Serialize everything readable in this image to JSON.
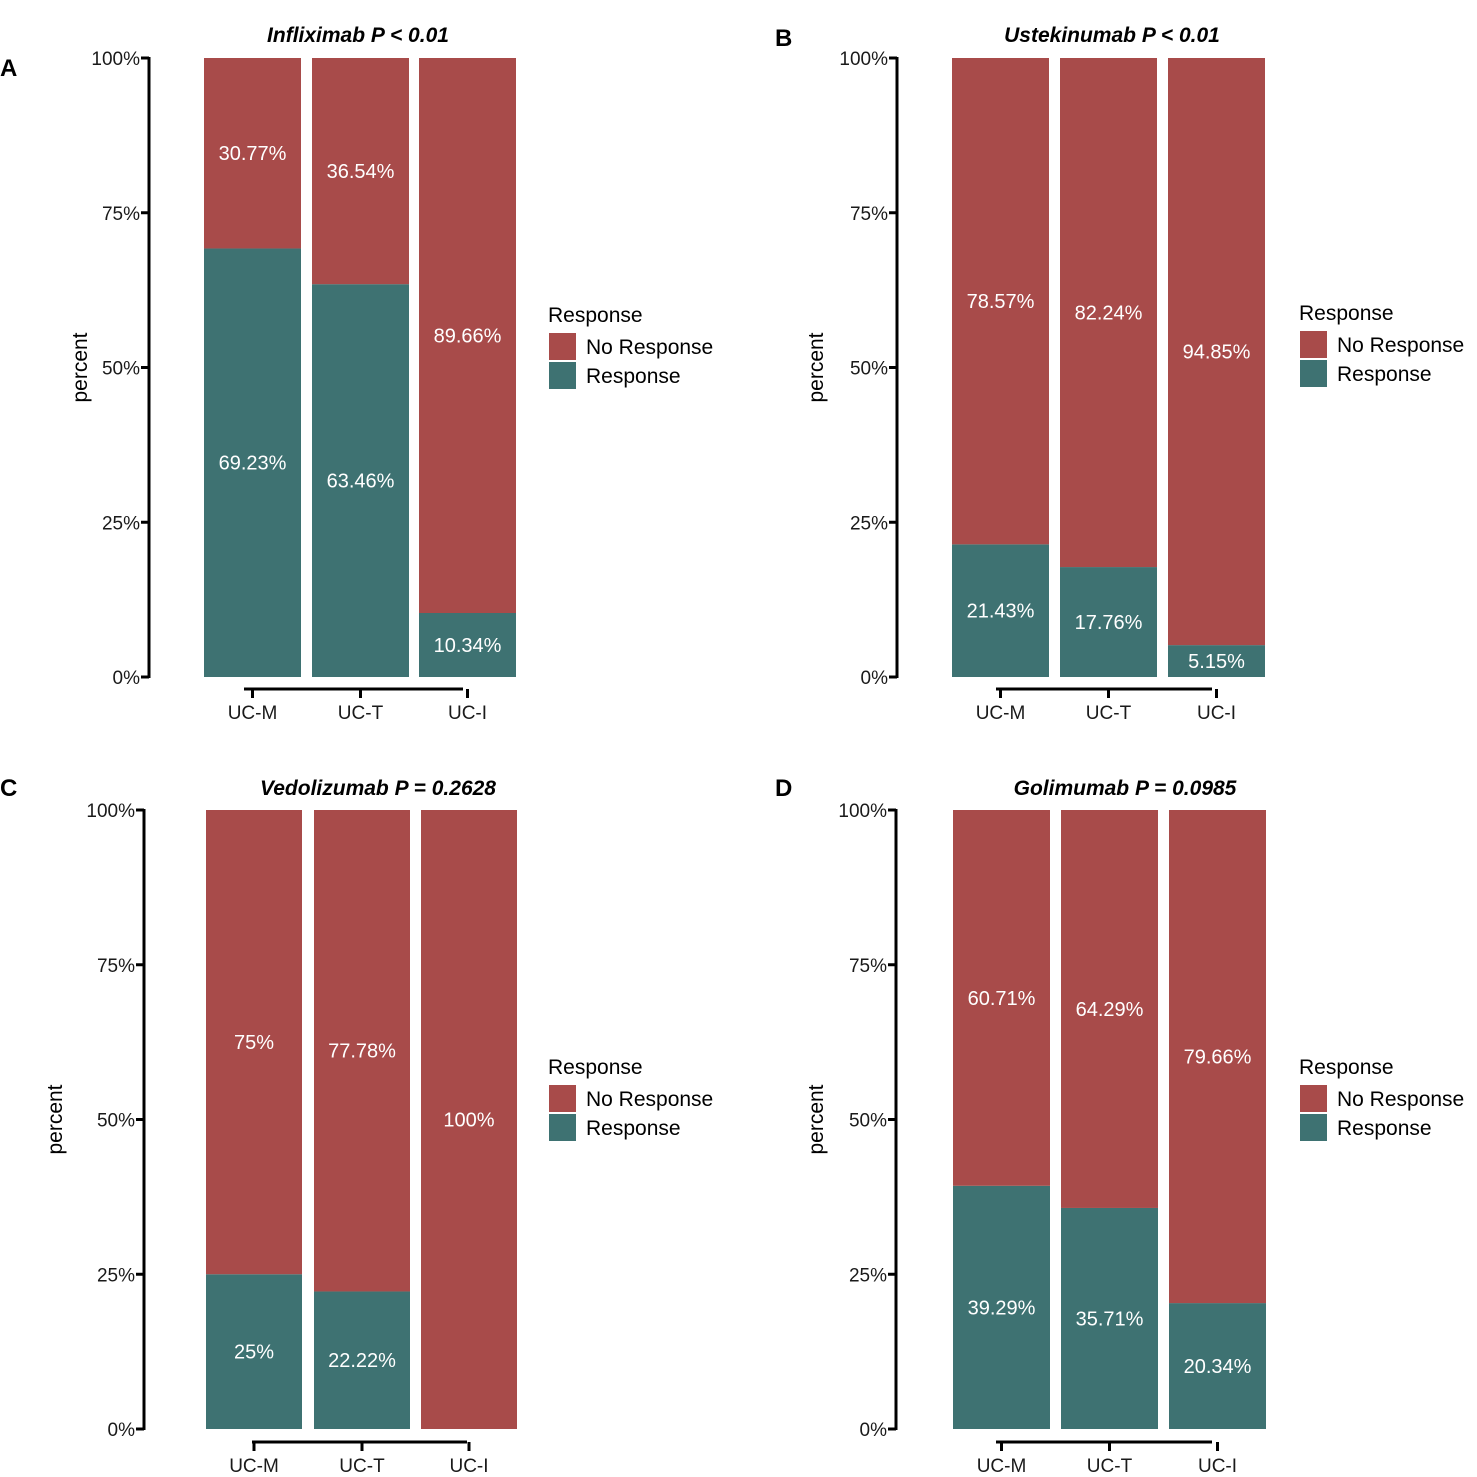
{
  "colors": {
    "no_response": "#a84b4a",
    "response": "#3e7272"
  },
  "legend": {
    "title": "Response",
    "items": [
      "No Response",
      "Response"
    ]
  },
  "chart_data": [
    {
      "panel": "A",
      "type": "bar",
      "stacked": true,
      "title": "Infliximab P < 0.01",
      "xlabel": "",
      "ylabel": "percent",
      "ylim": [
        0,
        100
      ],
      "yticks": [
        "0%",
        "25%",
        "50%",
        "75%",
        "100%"
      ],
      "categories": [
        "UC-M",
        "UC-T",
        "UC-I"
      ],
      "series": [
        {
          "name": "Response",
          "values": [
            69.23,
            63.46,
            10.34
          ],
          "labels": [
            "69.23%",
            "63.46%",
            "10.34%"
          ]
        },
        {
          "name": "No Response",
          "values": [
            30.77,
            36.54,
            89.66
          ],
          "labels": [
            "30.77%",
            "36.54%",
            "89.66%"
          ]
        }
      ]
    },
    {
      "panel": "B",
      "type": "bar",
      "stacked": true,
      "title": "Ustekinumab P < 0.01",
      "xlabel": "",
      "ylabel": "percent",
      "ylim": [
        0,
        100
      ],
      "yticks": [
        "0%",
        "25%",
        "50%",
        "75%",
        "100%"
      ],
      "categories": [
        "UC-M",
        "UC-T",
        "UC-I"
      ],
      "series": [
        {
          "name": "Response",
          "values": [
            21.43,
            17.76,
            5.15
          ],
          "labels": [
            "21.43%",
            "17.76%",
            "5.15%"
          ]
        },
        {
          "name": "No Response",
          "values": [
            78.57,
            82.24,
            94.85
          ],
          "labels": [
            "78.57%",
            "82.24%",
            "94.85%"
          ]
        }
      ]
    },
    {
      "panel": "C",
      "type": "bar",
      "stacked": true,
      "title": "Vedolizumab P = 0.2628",
      "xlabel": "",
      "ylabel": "percent",
      "ylim": [
        0,
        100
      ],
      "yticks": [
        "0%",
        "25%",
        "50%",
        "75%",
        "100%"
      ],
      "categories": [
        "UC-M",
        "UC-T",
        "UC-I"
      ],
      "series": [
        {
          "name": "Response",
          "values": [
            25,
            22.22,
            0
          ],
          "labels": [
            "25%",
            "22.22%",
            ""
          ]
        },
        {
          "name": "No Response",
          "values": [
            75,
            77.78,
            100
          ],
          "labels": [
            "75%",
            "77.78%",
            "100%"
          ]
        }
      ]
    },
    {
      "panel": "D",
      "type": "bar",
      "stacked": true,
      "title": "Golimumab P = 0.0985",
      "xlabel": "",
      "ylabel": "percent",
      "ylim": [
        0,
        100
      ],
      "yticks": [
        "0%",
        "25%",
        "50%",
        "75%",
        "100%"
      ],
      "categories": [
        "UC-M",
        "UC-T",
        "UC-I"
      ],
      "series": [
        {
          "name": "Response",
          "values": [
            39.29,
            35.71,
            20.34
          ],
          "labels": [
            "39.29%",
            "35.71%",
            "20.34%"
          ]
        },
        {
          "name": "No Response",
          "values": [
            60.71,
            64.29,
            79.66
          ],
          "labels": [
            "60.71%",
            "64.29%",
            "79.66%"
          ]
        }
      ]
    }
  ]
}
